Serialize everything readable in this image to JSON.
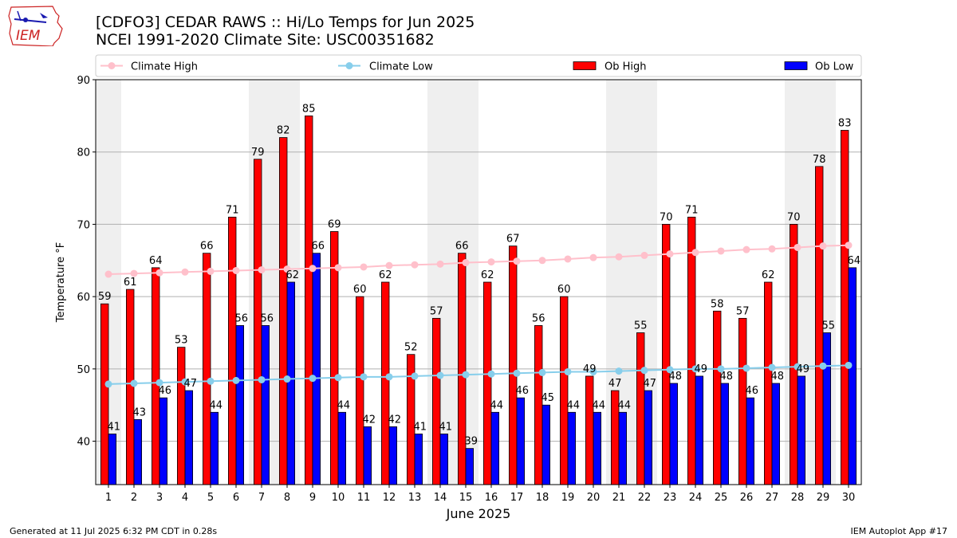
{
  "header": {
    "title_line1": "[CDFO3] CEDAR RAWS :: Hi/Lo Temps for Jun 2025",
    "title_line2": "NCEI 1991-2020 Climate Site: USC00351682",
    "logo_text": "IEM"
  },
  "footer": {
    "left": "Generated at 11 Jul 2025 6:32 PM CDT in 0.28s",
    "right": "IEM Autoplot App #17"
  },
  "colors": {
    "ob_high": "#ff0000",
    "ob_low": "#0000ff",
    "climate_high": "#ffc0cb",
    "climate_low": "#87ceeb",
    "weekend_shade": "#efefef",
    "grid": "#b0b0b0"
  },
  "chart_data": {
    "type": "bar",
    "xlabel": "June 2025",
    "ylabel": "Temperature °F",
    "ylim": [
      34,
      90
    ],
    "yticks": [
      40,
      50,
      60,
      70,
      80,
      90
    ],
    "grid": "horizontal",
    "legend_position": "top",
    "categories": [
      "1",
      "2",
      "3",
      "4",
      "5",
      "6",
      "7",
      "8",
      "9",
      "10",
      "11",
      "12",
      "13",
      "14",
      "15",
      "16",
      "17",
      "18",
      "19",
      "20",
      "21",
      "22",
      "23",
      "24",
      "25",
      "26",
      "27",
      "28",
      "29",
      "30"
    ],
    "shaded_days": [
      1,
      7,
      8,
      14,
      15,
      21,
      22,
      28,
      29
    ],
    "series": [
      {
        "name": "Climate High",
        "kind": "line",
        "values": [
          63.1,
          63.2,
          63.3,
          63.4,
          63.5,
          63.6,
          63.7,
          63.8,
          63.9,
          64.0,
          64.1,
          64.3,
          64.4,
          64.5,
          64.7,
          64.8,
          64.9,
          65.0,
          65.2,
          65.4,
          65.5,
          65.7,
          65.9,
          66.1,
          66.3,
          66.5,
          66.6,
          66.8,
          67.0,
          67.1
        ]
      },
      {
        "name": "Climate Low",
        "kind": "line",
        "values": [
          47.9,
          48.0,
          48.1,
          48.2,
          48.3,
          48.4,
          48.5,
          48.6,
          48.7,
          48.8,
          48.9,
          48.9,
          49.0,
          49.1,
          49.2,
          49.3,
          49.4,
          49.5,
          49.6,
          49.6,
          49.7,
          49.8,
          49.9,
          50.0,
          50.0,
          50.1,
          50.2,
          50.3,
          50.4,
          50.5
        ]
      },
      {
        "name": "Ob High",
        "kind": "bar",
        "values": [
          59,
          61,
          64,
          53,
          66,
          71,
          79,
          82,
          85,
          69,
          60,
          62,
          52,
          57,
          66,
          62,
          67,
          56,
          60,
          49,
          47,
          55,
          70,
          71,
          58,
          57,
          62,
          70,
          78,
          83
        ]
      },
      {
        "name": "Ob Low",
        "kind": "bar",
        "values": [
          41,
          43,
          46,
          47,
          44,
          56,
          56,
          62,
          66,
          44,
          42,
          42,
          41,
          41,
          39,
          44,
          46,
          45,
          44,
          44,
          44,
          47,
          48,
          49,
          48,
          46,
          48,
          49,
          55,
          64
        ]
      }
    ]
  }
}
